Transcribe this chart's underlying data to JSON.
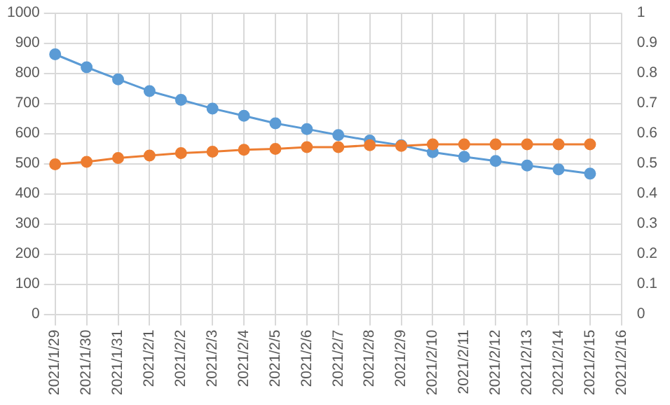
{
  "chart_data": {
    "type": "line",
    "categories": [
      "2021/1/29",
      "2021/1/30",
      "2021/1/31",
      "2021/2/1",
      "2021/2/2",
      "2021/2/3",
      "2021/2/4",
      "2021/2/5",
      "2021/2/6",
      "2021/2/7",
      "2021/2/8",
      "2021/2/9",
      "2021/2/10",
      "2021/2/11",
      "2021/2/12",
      "2021/2/13",
      "2021/2/14",
      "2021/2/15",
      "2021/2/16"
    ],
    "series": [
      {
        "color": "#5b9bd5",
        "values": [
          863,
          820,
          780,
          741,
          712,
          683,
          659,
          634,
          615,
          595,
          577,
          561,
          538,
          523,
          509,
          494,
          481,
          467,
          null
        ]
      },
      {
        "color": "#ed7d31",
        "values": [
          498,
          506,
          519,
          527,
          535,
          540,
          546,
          549,
          555,
          555,
          561,
          559,
          564,
          564,
          564,
          564,
          564,
          564,
          null
        ]
      }
    ],
    "ylim": [
      0,
      1000
    ],
    "yticks": [
      0,
      100,
      200,
      300,
      400,
      500,
      600,
      700,
      800,
      900,
      1000
    ],
    "y2lim": [
      0,
      1
    ],
    "y2ticks": [
      0,
      0.1,
      0.2,
      0.3,
      0.4,
      0.5,
      0.6,
      0.7,
      0.8,
      0.9,
      1
    ],
    "grid": true,
    "marker": "circle",
    "line_style": "solid"
  }
}
